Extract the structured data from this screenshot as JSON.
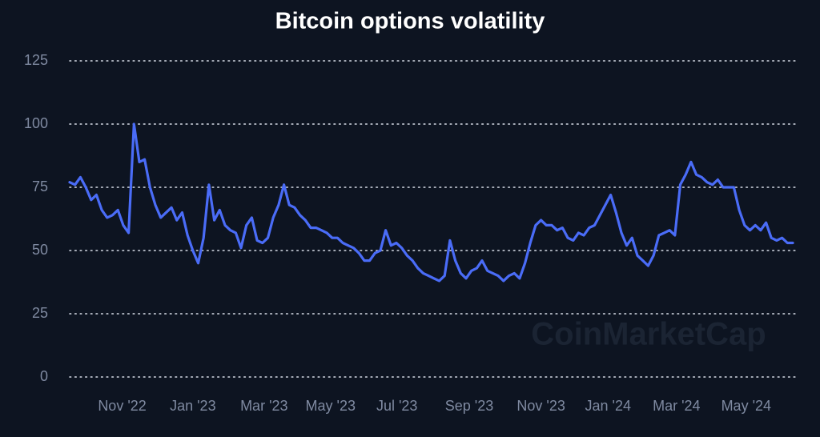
{
  "chart_data": {
    "type": "line",
    "title": "Bitcoin options volatility",
    "watermark": "CoinMarketCap",
    "color": "#4a6cf7",
    "grid": true,
    "ylim": [
      0,
      125
    ],
    "yticks": [
      0,
      25,
      50,
      75,
      100,
      125
    ],
    "xlim": [
      0,
      135
    ],
    "xticks": [
      {
        "value": 9.8,
        "label": "Nov '22"
      },
      {
        "value": 23,
        "label": "Jan '23"
      },
      {
        "value": 36.3,
        "label": "Mar '23"
      },
      {
        "value": 48.7,
        "label": "May '23"
      },
      {
        "value": 61.1,
        "label": "Jul '23"
      },
      {
        "value": 74.6,
        "label": "Sep '23"
      },
      {
        "value": 88,
        "label": "Nov '23"
      },
      {
        "value": 100.5,
        "label": "Jan '24"
      },
      {
        "value": 113.3,
        "label": "Mar '24"
      },
      {
        "value": 126.3,
        "label": "May '24"
      }
    ],
    "values": [
      77,
      76,
      79,
      75,
      70,
      72,
      66,
      63,
      64,
      66,
      60,
      57,
      100,
      85,
      86,
      75,
      68,
      63,
      65,
      67,
      62,
      65,
      56,
      50,
      45,
      55,
      76,
      62,
      66,
      60,
      58,
      57,
      51,
      60,
      63,
      54,
      53,
      55,
      63,
      68,
      76,
      68,
      67,
      64,
      62,
      59,
      59,
      58,
      57,
      55,
      55,
      53,
      52,
      51,
      49,
      46,
      46,
      49,
      50,
      58,
      52,
      53,
      51,
      48,
      46,
      43,
      41,
      40,
      39,
      38,
      40,
      54,
      46,
      41,
      39,
      42,
      43,
      46,
      42,
      41,
      40,
      38,
      40,
      41,
      39,
      45,
      53,
      60,
      62,
      60,
      60,
      58,
      59,
      55,
      54,
      57,
      56,
      59,
      60,
      64,
      68,
      72,
      65,
      57,
      52,
      55,
      48,
      46,
      44,
      48,
      56,
      57,
      58,
      56,
      76,
      80,
      85,
      80,
      79,
      77,
      76,
      78,
      75,
      75,
      75,
      66,
      60,
      58,
      60,
      58,
      61,
      55,
      54,
      55,
      53,
      53
    ]
  }
}
